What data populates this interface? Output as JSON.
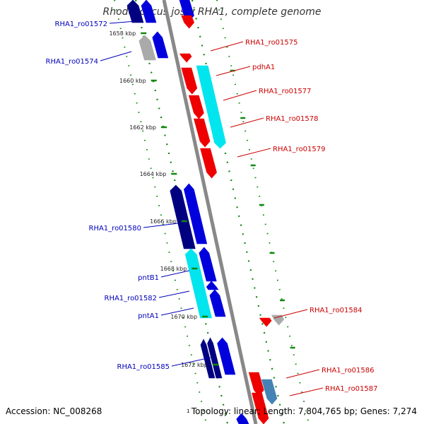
{
  "title": "Rhodococcus jostii RHA1, complete genome",
  "accession_label": "Accession: NC_008268",
  "topology_label": "Topology: linear; Length: 7,804,765 bp; Genes: 7,274",
  "ruler_glyph": "1",
  "colors": {
    "backbone": "#888888",
    "track_dots": "#118811",
    "forward": "#0000dd",
    "forward_dark": "#000080",
    "cyan": "#00e5ee",
    "reverse": "#ee0000",
    "grey": "#aaaaaa",
    "steel": "#4682b4",
    "label_blue": "#0000bb",
    "label_red": "#cc0000"
  },
  "kbp_labels": [
    "1658 kbp",
    "1660 kbp",
    "1662 kbp",
    "1664 kbp",
    "1666 kbp",
    "1668 kbp",
    "1670 kbp",
    "1672 kbp"
  ],
  "genes_forward": [
    {
      "name": "RHA1_ro01572",
      "color": "forward_dark"
    },
    {
      "name": "RHA1_ro01574",
      "color": "grey"
    },
    {
      "name": "RHA1_ro01580",
      "color": "forward_dark"
    },
    {
      "name": "pntB1",
      "color": "cyan"
    },
    {
      "name": "RHA1_ro01582",
      "color": "forward"
    },
    {
      "name": "pntA1",
      "color": "forward"
    },
    {
      "name": "RHA1_ro01585",
      "color": "forward_dark"
    }
  ],
  "genes_reverse": [
    {
      "name": "RHA1_ro01575",
      "color": "reverse"
    },
    {
      "name": "pdhA1",
      "color": "cyan"
    },
    {
      "name": "RHA1_ro01577",
      "color": "reverse"
    },
    {
      "name": "RHA1_ro01578",
      "color": "reverse"
    },
    {
      "name": "RHA1_ro01579",
      "color": "reverse"
    },
    {
      "name": "RHA1_ro01584",
      "color": "grey"
    },
    {
      "name": "RHA1_ro01586",
      "color": "reverse"
    },
    {
      "name": "RHA1_ro01587",
      "color": "steel"
    }
  ]
}
